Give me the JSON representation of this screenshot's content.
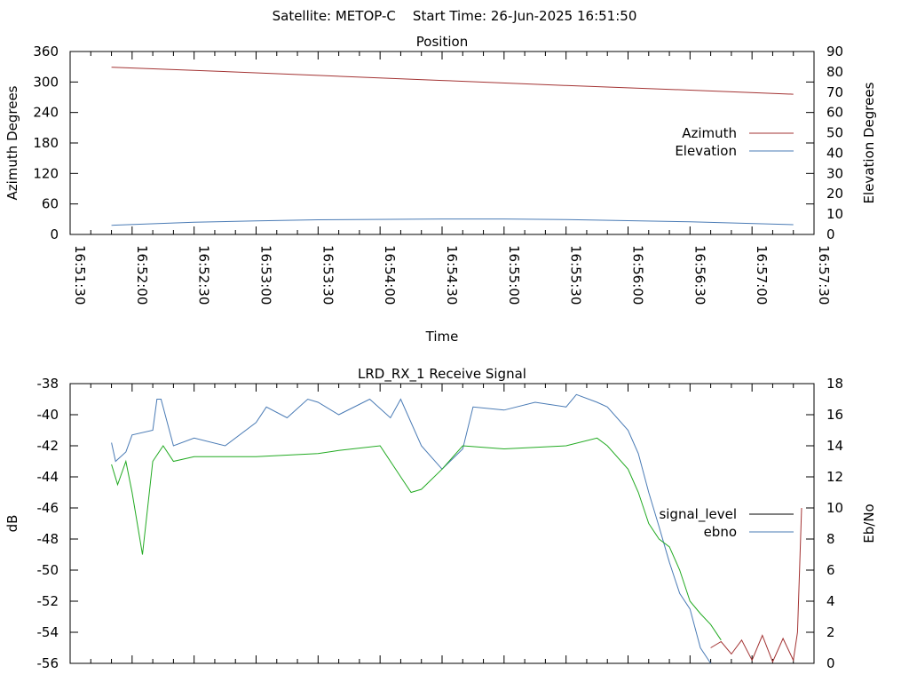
{
  "header": {
    "title": "Satellite: METOP-C    Start Time: 26-Jun-2025 16:51:50"
  },
  "chart_data": [
    {
      "type": "line",
      "title": "Position",
      "xlabel": "Time",
      "ylabel": "Azimuth Degrees",
      "y2label": "Elevation Degrees",
      "xlim": [
        "16:51:30",
        "16:57:30"
      ],
      "ylim": [
        0,
        360
      ],
      "y2lim": [
        0,
        90
      ],
      "x_ticks": [
        "16:51:30",
        "16:52:00",
        "16:52:30",
        "16:53:00",
        "16:53:30",
        "16:54:00",
        "16:54:30",
        "16:55:00",
        "16:55:30",
        "16:56:00",
        "16:56:30",
        "16:57:00",
        "16:57:30"
      ],
      "y_ticks": [
        "0",
        "60",
        "120",
        "180",
        "240",
        "300",
        "360"
      ],
      "y2_ticks": [
        "0",
        "10",
        "20",
        "30",
        "40",
        "50",
        "60",
        "70",
        "80",
        "90"
      ],
      "legend_position": "right",
      "grid": false,
      "series": [
        {
          "name": "Azimuth",
          "axis": "y",
          "color": "#a33333",
          "x": [
            "16:51:50",
            "16:52:30",
            "16:53:30",
            "16:54:30",
            "16:55:30",
            "16:56:30",
            "16:57:20"
          ],
          "values": [
            329,
            323,
            313,
            303,
            293,
            284,
            276
          ]
        },
        {
          "name": "Elevation",
          "axis": "y2",
          "color": "#4a7bb5",
          "x": [
            "16:51:50",
            "16:52:30",
            "16:53:00",
            "16:53:30",
            "16:54:30",
            "16:55:00",
            "16:55:30",
            "16:56:30",
            "16:57:20"
          ],
          "values": [
            4.5,
            6.0,
            6.7,
            7.2,
            7.6,
            7.6,
            7.3,
            6.2,
            4.8
          ]
        }
      ]
    },
    {
      "type": "line",
      "title": "LRD_RX_1 Receive Signal",
      "ylabel": "dB",
      "y2label": "Eb/No",
      "xlim": [
        "16:51:30",
        "16:57:30"
      ],
      "ylim": [
        -56,
        -38
      ],
      "y2lim": [
        0,
        18
      ],
      "y_ticks": [
        "-38",
        "-40",
        "-42",
        "-44",
        "-46",
        "-48",
        "-50",
        "-52",
        "-54",
        "-56"
      ],
      "y2_ticks": [
        "0",
        "2",
        "4",
        "6",
        "8",
        "10",
        "12",
        "14",
        "16",
        "18"
      ],
      "legend_position": "right",
      "grid": false,
      "series": [
        {
          "name": "signal_level",
          "axis": "y",
          "color": "#000000",
          "x": [],
          "values": []
        },
        {
          "name": "ebno",
          "axis": "y2",
          "color": "#4a7bb5",
          "x": [
            "16:51:50",
            "16:51:52",
            "16:51:57",
            "16:52:00",
            "16:52:10",
            "16:52:12",
            "16:52:14",
            "16:52:20",
            "16:52:30",
            "16:52:45",
            "16:53:00",
            "16:53:05",
            "16:53:15",
            "16:53:25",
            "16:53:30",
            "16:53:40",
            "16:53:55",
            "16:54:05",
            "16:54:10",
            "16:54:20",
            "16:54:30",
            "16:54:40",
            "16:54:45",
            "16:55:00",
            "16:55:15",
            "16:55:30",
            "16:55:35",
            "16:55:45",
            "16:55:50",
            "16:56:00",
            "16:56:05",
            "16:56:10",
            "16:56:15",
            "16:56:20",
            "16:56:25",
            "16:56:30",
            "16:56:35",
            "16:56:40"
          ],
          "values": [
            14.2,
            13.0,
            13.6,
            14.7,
            15.0,
            17.0,
            17.0,
            14.0,
            14.5,
            14.0,
            15.5,
            16.5,
            15.8,
            17.0,
            16.8,
            16.0,
            17.0,
            15.8,
            17.0,
            14.0,
            12.5,
            13.8,
            16.5,
            16.3,
            16.8,
            16.5,
            17.3,
            16.8,
            16.5,
            15.0,
            13.5,
            11.0,
            8.8,
            6.5,
            4.5,
            3.5,
            1.0,
            0
          ]
        },
        {
          "name": "",
          "axis": "y2",
          "color": "#22aa22",
          "x": [
            "16:51:50",
            "16:51:53",
            "16:51:57",
            "16:52:00",
            "16:52:05",
            "16:52:10",
            "16:52:15",
            "16:52:20",
            "16:52:30",
            "16:53:00",
            "16:53:30",
            "16:53:40",
            "16:54:00",
            "16:54:10",
            "16:54:15",
            "16:54:20",
            "16:54:30",
            "16:54:40",
            "16:55:00",
            "16:55:30",
            "16:55:45",
            "16:55:50",
            "16:56:00",
            "16:56:05",
            "16:56:10",
            "16:56:15",
            "16:56:20",
            "16:56:25",
            "16:56:30",
            "16:56:35",
            "16:56:40",
            "16:56:45"
          ],
          "values": [
            12.8,
            11.5,
            13.0,
            11.0,
            7.0,
            13.0,
            14.0,
            13.0,
            13.3,
            13.3,
            13.5,
            13.7,
            14.0,
            12.0,
            11.0,
            11.2,
            12.5,
            14.0,
            13.8,
            14.0,
            14.5,
            14.0,
            12.5,
            11.0,
            9.0,
            8.0,
            7.5,
            6.0,
            4.0,
            3.2,
            2.5,
            1.5
          ]
        },
        {
          "name": "",
          "axis": "y2",
          "color": "#a33333",
          "x": [
            "16:56:40",
            "16:56:45",
            "16:56:50",
            "16:56:55",
            "16:57:00",
            "16:57:05",
            "16:57:10",
            "16:57:15",
            "16:57:20",
            "16:57:22",
            "16:57:24"
          ],
          "values": [
            1.0,
            1.4,
            0.6,
            1.5,
            0.2,
            1.8,
            0.1,
            1.6,
            0.2,
            2.0,
            10.0
          ]
        }
      ]
    }
  ]
}
